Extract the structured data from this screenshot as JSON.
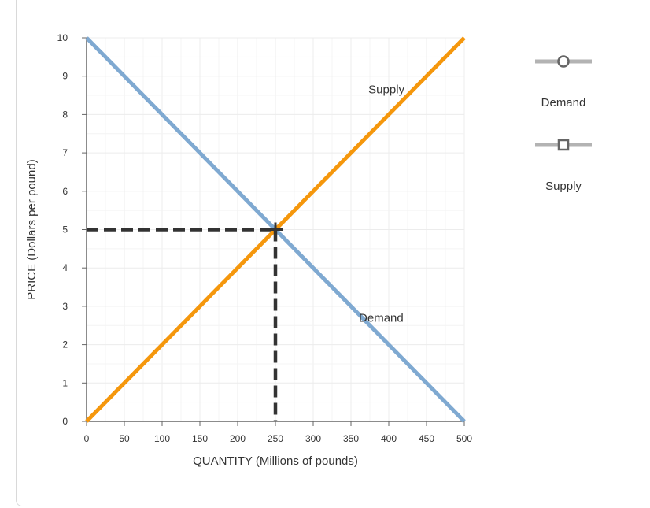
{
  "chart_data": {
    "type": "line",
    "xlabel": "QUANTITY (Millions of pounds)",
    "ylabel": "PRICE (Dollars per pound)",
    "xlim": [
      0,
      500
    ],
    "ylim": [
      0,
      10
    ],
    "x_ticks": [
      0,
      50,
      100,
      150,
      200,
      250,
      300,
      350,
      400,
      450,
      500
    ],
    "y_ticks": [
      0,
      1,
      2,
      3,
      4,
      5,
      6,
      7,
      8,
      9,
      10
    ],
    "grid": true,
    "legend_position": "right",
    "series": [
      {
        "name": "Demand",
        "color": "#7fa9d1",
        "marker": "circle",
        "x": [
          0,
          500
        ],
        "y": [
          10,
          0
        ],
        "label": "Demand",
        "label_at": [
          390,
          2.6
        ]
      },
      {
        "name": "Supply",
        "color": "#f5970c",
        "marker": "square",
        "x": [
          0,
          500
        ],
        "y": [
          0,
          10
        ],
        "label": "Supply",
        "label_at": [
          397,
          8.55
        ]
      }
    ],
    "equilibrium": {
      "x": 250,
      "y": 5,
      "color": "#333333"
    }
  },
  "legend": {
    "items": [
      {
        "label": "Demand",
        "icon": "circle-marker-icon"
      },
      {
        "label": "Supply",
        "icon": "square-marker-icon"
      }
    ],
    "line_color": "#b3b3b3",
    "marker_color": "#666666"
  }
}
